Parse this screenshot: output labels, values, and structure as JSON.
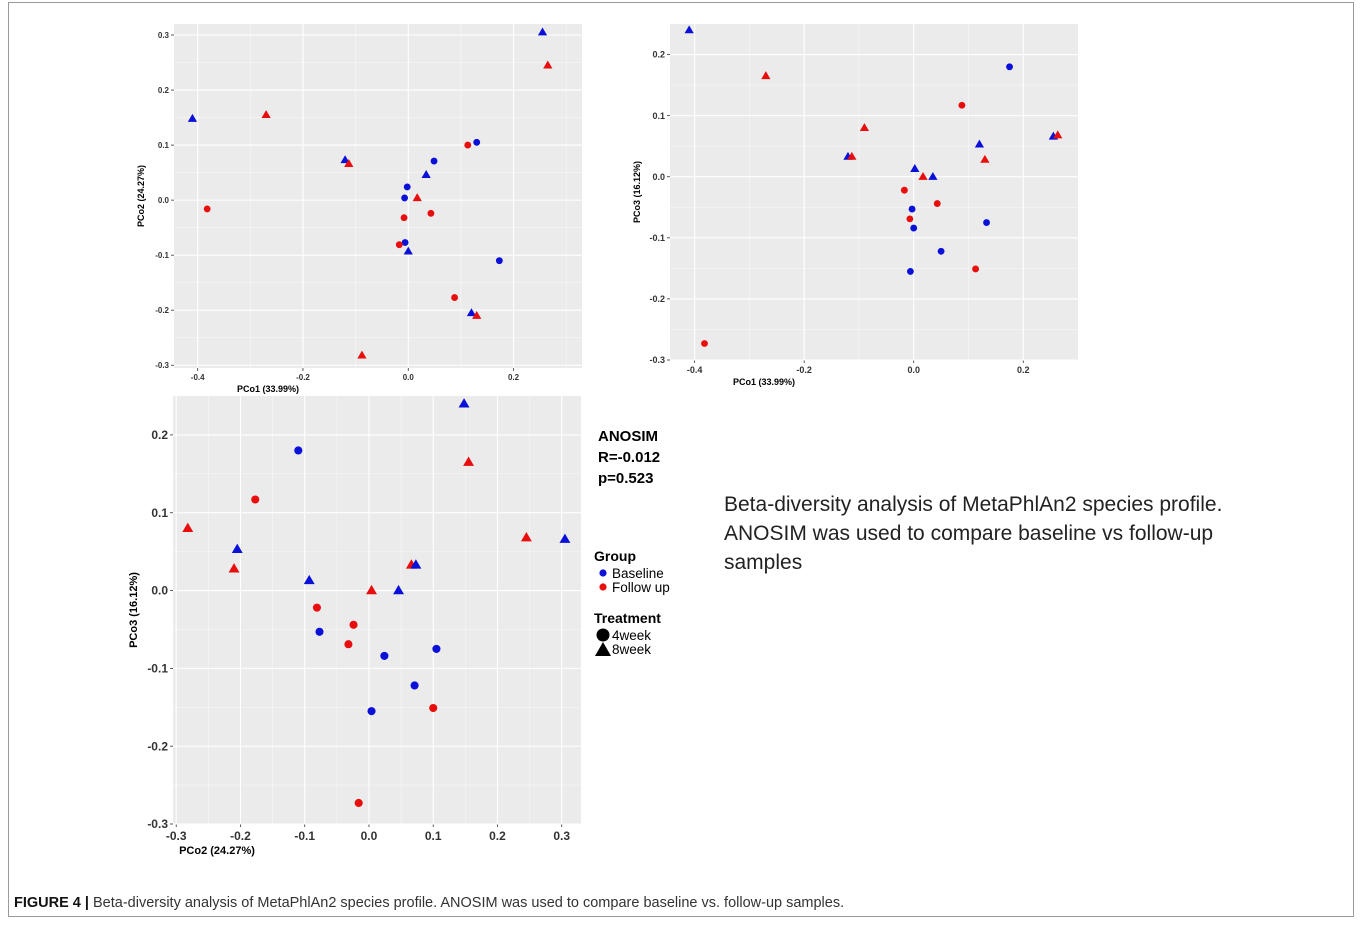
{
  "colors": {
    "baseline": "#0a10d8",
    "follow_up": "#e80e0e",
    "panel_bg": "#ebebeb",
    "grid": "#ffffff"
  },
  "caption": {
    "label": "FIGURE 4 |",
    "text": " Beta-diversity analysis of MetaPhlAn2 species profile. ANOSIM was used to compare baseline vs. follow-up samples."
  },
  "anosim": {
    "title": "ANOSIM",
    "r": "R=-0.012",
    "p": "p=0.523"
  },
  "note": "Beta-diversity analysis of MetaPhlAn2 species profile.  ANOSIM was used to compare baseline vs follow-up samples",
  "legend": {
    "group_title": "Group",
    "groups": [
      {
        "label": "Baseline",
        "color": "#0a10d8"
      },
      {
        "label": "Follow up",
        "color": "#e80e0e"
      }
    ],
    "treatment_title": "Treatment",
    "treatments": [
      {
        "label": "4week",
        "shape": "circle"
      },
      {
        "label": "8week",
        "shape": "triangle"
      }
    ]
  },
  "chart_data": [
    {
      "type": "scatter",
      "xlabel": "PCo1 (33.99%)",
      "ylabel": "PCo2 (24.27%)",
      "xlim": [
        -0.445,
        0.33
      ],
      "ylim": [
        -0.305,
        0.32
      ],
      "xticks": [
        -0.4,
        -0.2,
        0.0,
        0.2
      ],
      "yticks": [
        -0.3,
        -0.2,
        -0.1,
        0.0,
        0.1,
        0.2,
        0.3
      ],
      "xtick_labels": [
        "-0.4",
        "-0.2",
        "0.0",
        "0.2"
      ],
      "ytick_labels": [
        "-0.3",
        "-0.2",
        "-0.1",
        "0.0",
        "0.1",
        "0.2",
        "0.3"
      ],
      "grid": true,
      "points": [
        {
          "x": 0.255,
          "y": 0.305,
          "group": "Baseline",
          "treatment": "8week"
        },
        {
          "x": 0.265,
          "y": 0.245,
          "group": "Follow up",
          "treatment": "8week"
        },
        {
          "x": -0.41,
          "y": 0.148,
          "group": "Baseline",
          "treatment": "8week"
        },
        {
          "x": -0.27,
          "y": 0.155,
          "group": "Follow up",
          "treatment": "8week"
        },
        {
          "x": -0.12,
          "y": 0.073,
          "group": "Baseline",
          "treatment": "8week"
        },
        {
          "x": -0.113,
          "y": 0.066,
          "group": "Follow up",
          "treatment": "8week"
        },
        {
          "x": -0.382,
          "y": -0.016,
          "group": "Follow up",
          "treatment": "4week"
        },
        {
          "x": 0.049,
          "y": 0.071,
          "group": "Baseline",
          "treatment": "4week"
        },
        {
          "x": 0.13,
          "y": 0.105,
          "group": "Baseline",
          "treatment": "4week"
        },
        {
          "x": 0.113,
          "y": 0.1,
          "group": "Follow up",
          "treatment": "4week"
        },
        {
          "x": 0.034,
          "y": 0.046,
          "group": "Baseline",
          "treatment": "8week"
        },
        {
          "x": -0.002,
          "y": 0.024,
          "group": "Baseline",
          "treatment": "4week"
        },
        {
          "x": -0.007,
          "y": 0.004,
          "group": "Baseline",
          "treatment": "4week"
        },
        {
          "x": 0.017,
          "y": 0.004,
          "group": "Follow up",
          "treatment": "8week"
        },
        {
          "x": -0.008,
          "y": -0.032,
          "group": "Follow up",
          "treatment": "4week"
        },
        {
          "x": 0.043,
          "y": -0.024,
          "group": "Follow up",
          "treatment": "4week"
        },
        {
          "x": -0.006,
          "y": -0.077,
          "group": "Baseline",
          "treatment": "4week"
        },
        {
          "x": -0.017,
          "y": -0.081,
          "group": "Follow up",
          "treatment": "4week"
        },
        {
          "x": 0.0,
          "y": -0.093,
          "group": "Baseline",
          "treatment": "8week"
        },
        {
          "x": 0.173,
          "y": -0.11,
          "group": "Baseline",
          "treatment": "4week"
        },
        {
          "x": 0.088,
          "y": -0.177,
          "group": "Follow up",
          "treatment": "4week"
        },
        {
          "x": 0.12,
          "y": -0.205,
          "group": "Baseline",
          "treatment": "8week"
        },
        {
          "x": 0.13,
          "y": -0.21,
          "group": "Follow up",
          "treatment": "8week"
        },
        {
          "x": -0.088,
          "y": -0.282,
          "group": "Follow up",
          "treatment": "8week"
        }
      ]
    },
    {
      "type": "scatter",
      "xlabel": "PCo1 (33.99%)",
      "ylabel": "PCo3 (16.12%)",
      "xlim": [
        -0.445,
        0.3
      ],
      "ylim": [
        -0.3,
        0.25
      ],
      "xticks": [
        -0.4,
        -0.2,
        0.0,
        0.2
      ],
      "yticks": [
        -0.3,
        -0.2,
        -0.1,
        0.0,
        0.1,
        0.2
      ],
      "xtick_labels": [
        "-0.4",
        "-0.2",
        "0.0",
        "0.2"
      ],
      "ytick_labels": [
        "-0.3",
        "-0.2",
        "-0.1",
        "0.0",
        "0.1",
        "0.2"
      ],
      "grid": true,
      "points": [
        {
          "x": -0.41,
          "y": 0.24,
          "group": "Baseline",
          "treatment": "8week"
        },
        {
          "x": -0.27,
          "y": 0.165,
          "group": "Follow up",
          "treatment": "8week"
        },
        {
          "x": 0.175,
          "y": 0.18,
          "group": "Baseline",
          "treatment": "4week"
        },
        {
          "x": 0.088,
          "y": 0.117,
          "group": "Follow up",
          "treatment": "4week"
        },
        {
          "x": -0.09,
          "y": 0.08,
          "group": "Follow up",
          "treatment": "8week"
        },
        {
          "x": -0.12,
          "y": 0.033,
          "group": "Baseline",
          "treatment": "8week"
        },
        {
          "x": -0.113,
          "y": 0.033,
          "group": "Follow up",
          "treatment": "8week"
        },
        {
          "x": 0.12,
          "y": 0.053,
          "group": "Baseline",
          "treatment": "8week"
        },
        {
          "x": 0.255,
          "y": 0.066,
          "group": "Baseline",
          "treatment": "8week"
        },
        {
          "x": 0.263,
          "y": 0.068,
          "group": "Follow up",
          "treatment": "8week"
        },
        {
          "x": 0.13,
          "y": 0.028,
          "group": "Follow up",
          "treatment": "8week"
        },
        {
          "x": 0.002,
          "y": 0.013,
          "group": "Baseline",
          "treatment": "8week"
        },
        {
          "x": 0.017,
          "y": 0.0,
          "group": "Follow up",
          "treatment": "8week"
        },
        {
          "x": 0.035,
          "y": 0.0,
          "group": "Baseline",
          "treatment": "8week"
        },
        {
          "x": -0.017,
          "y": -0.022,
          "group": "Follow up",
          "treatment": "4week"
        },
        {
          "x": 0.043,
          "y": -0.044,
          "group": "Follow up",
          "treatment": "4week"
        },
        {
          "x": -0.003,
          "y": -0.053,
          "group": "Baseline",
          "treatment": "4week"
        },
        {
          "x": -0.007,
          "y": -0.069,
          "group": "Follow up",
          "treatment": "4week"
        },
        {
          "x": 0.0,
          "y": -0.084,
          "group": "Baseline",
          "treatment": "4week"
        },
        {
          "x": 0.133,
          "y": -0.075,
          "group": "Baseline",
          "treatment": "4week"
        },
        {
          "x": 0.05,
          "y": -0.122,
          "group": "Baseline",
          "treatment": "4week"
        },
        {
          "x": 0.113,
          "y": -0.151,
          "group": "Follow up",
          "treatment": "4week"
        },
        {
          "x": -0.006,
          "y": -0.155,
          "group": "Baseline",
          "treatment": "4week"
        },
        {
          "x": -0.382,
          "y": -0.273,
          "group": "Follow up",
          "treatment": "4week"
        }
      ]
    },
    {
      "type": "scatter",
      "xlabel": "PCo2 (24.27%)",
      "ylabel": "PCo3 (16.12%)",
      "xlim": [
        -0.305,
        0.33
      ],
      "ylim": [
        -0.3,
        0.25
      ],
      "xticks": [
        -0.3,
        -0.2,
        -0.1,
        0.0,
        0.1,
        0.2,
        0.3
      ],
      "yticks": [
        -0.3,
        -0.2,
        -0.1,
        0.0,
        0.1,
        0.2
      ],
      "xtick_labels": [
        "-0.3",
        "-0.2",
        "-0.1",
        "0.0",
        "0.1",
        "0.2",
        "0.3"
      ],
      "ytick_labels": [
        "-0.3",
        "-0.2",
        "-0.1",
        "0.0",
        "0.1",
        "0.2"
      ],
      "grid": true,
      "points": [
        {
          "x": 0.148,
          "y": 0.24,
          "group": "Baseline",
          "treatment": "8week"
        },
        {
          "x": -0.11,
          "y": 0.18,
          "group": "Baseline",
          "treatment": "4week"
        },
        {
          "x": 0.155,
          "y": 0.165,
          "group": "Follow up",
          "treatment": "8week"
        },
        {
          "x": -0.177,
          "y": 0.117,
          "group": "Follow up",
          "treatment": "4week"
        },
        {
          "x": -0.282,
          "y": 0.08,
          "group": "Follow up",
          "treatment": "8week"
        },
        {
          "x": 0.245,
          "y": 0.068,
          "group": "Follow up",
          "treatment": "8week"
        },
        {
          "x": 0.305,
          "y": 0.066,
          "group": "Baseline",
          "treatment": "8week"
        },
        {
          "x": -0.205,
          "y": 0.053,
          "group": "Baseline",
          "treatment": "8week"
        },
        {
          "x": -0.21,
          "y": 0.028,
          "group": "Follow up",
          "treatment": "8week"
        },
        {
          "x": 0.066,
          "y": 0.033,
          "group": "Follow up",
          "treatment": "8week"
        },
        {
          "x": 0.073,
          "y": 0.033,
          "group": "Baseline",
          "treatment": "8week"
        },
        {
          "x": -0.093,
          "y": 0.013,
          "group": "Baseline",
          "treatment": "8week"
        },
        {
          "x": 0.004,
          "y": 0.0,
          "group": "Follow up",
          "treatment": "8week"
        },
        {
          "x": 0.046,
          "y": 0.0,
          "group": "Baseline",
          "treatment": "8week"
        },
        {
          "x": -0.081,
          "y": -0.022,
          "group": "Follow up",
          "treatment": "4week"
        },
        {
          "x": -0.024,
          "y": -0.044,
          "group": "Follow up",
          "treatment": "4week"
        },
        {
          "x": -0.077,
          "y": -0.053,
          "group": "Baseline",
          "treatment": "4week"
        },
        {
          "x": -0.032,
          "y": -0.069,
          "group": "Follow up",
          "treatment": "4week"
        },
        {
          "x": 0.024,
          "y": -0.084,
          "group": "Baseline",
          "treatment": "4week"
        },
        {
          "x": 0.105,
          "y": -0.075,
          "group": "Baseline",
          "treatment": "4week"
        },
        {
          "x": 0.071,
          "y": -0.122,
          "group": "Baseline",
          "treatment": "4week"
        },
        {
          "x": 0.1,
          "y": -0.151,
          "group": "Follow up",
          "treatment": "4week"
        },
        {
          "x": 0.004,
          "y": -0.155,
          "group": "Baseline",
          "treatment": "4week"
        },
        {
          "x": -0.016,
          "y": -0.273,
          "group": "Follow up",
          "treatment": "4week"
        }
      ]
    }
  ]
}
